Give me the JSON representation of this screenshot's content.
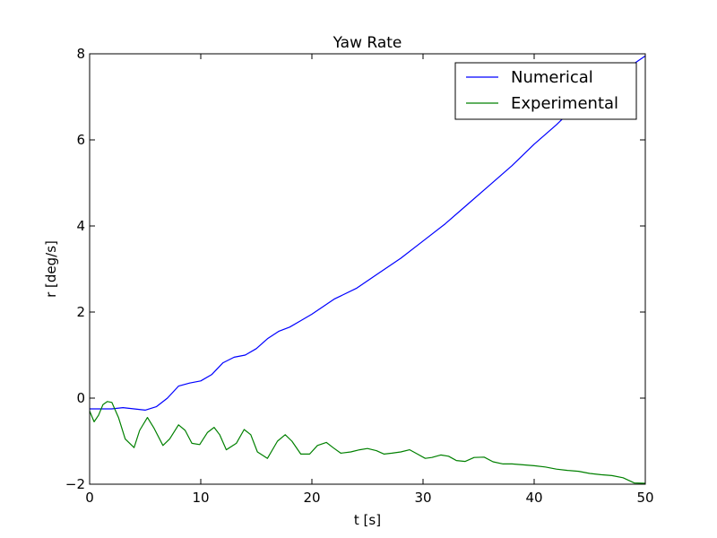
{
  "chart_data": {
    "type": "line",
    "title": "Yaw Rate",
    "xlabel": "t [s]",
    "ylabel": "r [deg/s]",
    "xlim": [
      0,
      50
    ],
    "ylim": [
      -2,
      8
    ],
    "x_ticks": [
      0,
      10,
      20,
      30,
      40,
      50
    ],
    "y_ticks": [
      -2,
      0,
      2,
      4,
      6,
      8
    ],
    "x_tick_labels": [
      "0",
      "10",
      "20",
      "30",
      "40",
      "50"
    ],
    "y_tick_labels": [
      "−2",
      "0",
      "2",
      "4",
      "6",
      "8"
    ],
    "grid": false,
    "legend_position": "top-right",
    "series": [
      {
        "name": "Numerical",
        "color": "#0000ff",
        "x": [
          0,
          2,
          3,
          4,
          5,
          6,
          7,
          8,
          9,
          10,
          11,
          12,
          13,
          14,
          15,
          16,
          17,
          18,
          19,
          20,
          22,
          24,
          26,
          28,
          30,
          32,
          34,
          36,
          38,
          40,
          42,
          44,
          46,
          48,
          50
        ],
        "y": [
          -0.25,
          -0.25,
          -0.22,
          -0.25,
          -0.28,
          -0.2,
          0.0,
          0.28,
          0.35,
          0.4,
          0.55,
          0.82,
          0.95,
          1.0,
          1.15,
          1.38,
          1.55,
          1.65,
          1.8,
          1.95,
          2.3,
          2.55,
          2.9,
          3.25,
          3.65,
          4.05,
          4.5,
          4.95,
          5.4,
          5.9,
          6.35,
          6.85,
          7.2,
          7.6,
          7.95
        ]
      },
      {
        "name": "Experimental",
        "color": "#008000",
        "x": [
          0,
          0.4,
          0.8,
          1.2,
          1.6,
          2.0,
          2.6,
          3.2,
          4.0,
          4.5,
          5.2,
          5.8,
          6.6,
          7.2,
          8.0,
          8.6,
          9.2,
          9.9,
          10.6,
          11.2,
          11.7,
          12.3,
          13.2,
          13.9,
          14.5,
          15.1,
          16.0,
          16.9,
          17.6,
          18.2,
          19.0,
          19.8,
          20.5,
          21.3,
          21.9,
          22.6,
          23.5,
          24.3,
          25.0,
          25.8,
          26.5,
          27.2,
          28.0,
          28.8,
          29.5,
          30.2,
          30.8,
          31.6,
          32.3,
          33.0,
          33.8,
          34.6,
          35.5,
          36.3,
          37.2,
          38.0,
          39.0,
          40.0,
          41.0,
          42.0,
          43.0,
          44.0,
          45.0,
          46.0,
          47.0,
          48.0,
          49.0,
          50.0
        ],
        "y": [
          -0.3,
          -0.55,
          -0.4,
          -0.15,
          -0.08,
          -0.1,
          -0.45,
          -0.95,
          -1.15,
          -0.75,
          -0.45,
          -0.7,
          -1.1,
          -0.95,
          -0.62,
          -0.75,
          -1.05,
          -1.08,
          -0.8,
          -0.68,
          -0.85,
          -1.2,
          -1.05,
          -0.73,
          -0.85,
          -1.25,
          -1.4,
          -1.0,
          -0.85,
          -1.0,
          -1.3,
          -1.3,
          -1.1,
          -1.03,
          -1.15,
          -1.28,
          -1.25,
          -1.2,
          -1.17,
          -1.22,
          -1.3,
          -1.28,
          -1.25,
          -1.2,
          -1.3,
          -1.4,
          -1.38,
          -1.32,
          -1.35,
          -1.45,
          -1.47,
          -1.38,
          -1.37,
          -1.48,
          -1.53,
          -1.53,
          -1.55,
          -1.57,
          -1.6,
          -1.65,
          -1.68,
          -1.7,
          -1.75,
          -1.78,
          -1.8,
          -1.85,
          -1.97,
          -1.98
        ]
      }
    ]
  }
}
